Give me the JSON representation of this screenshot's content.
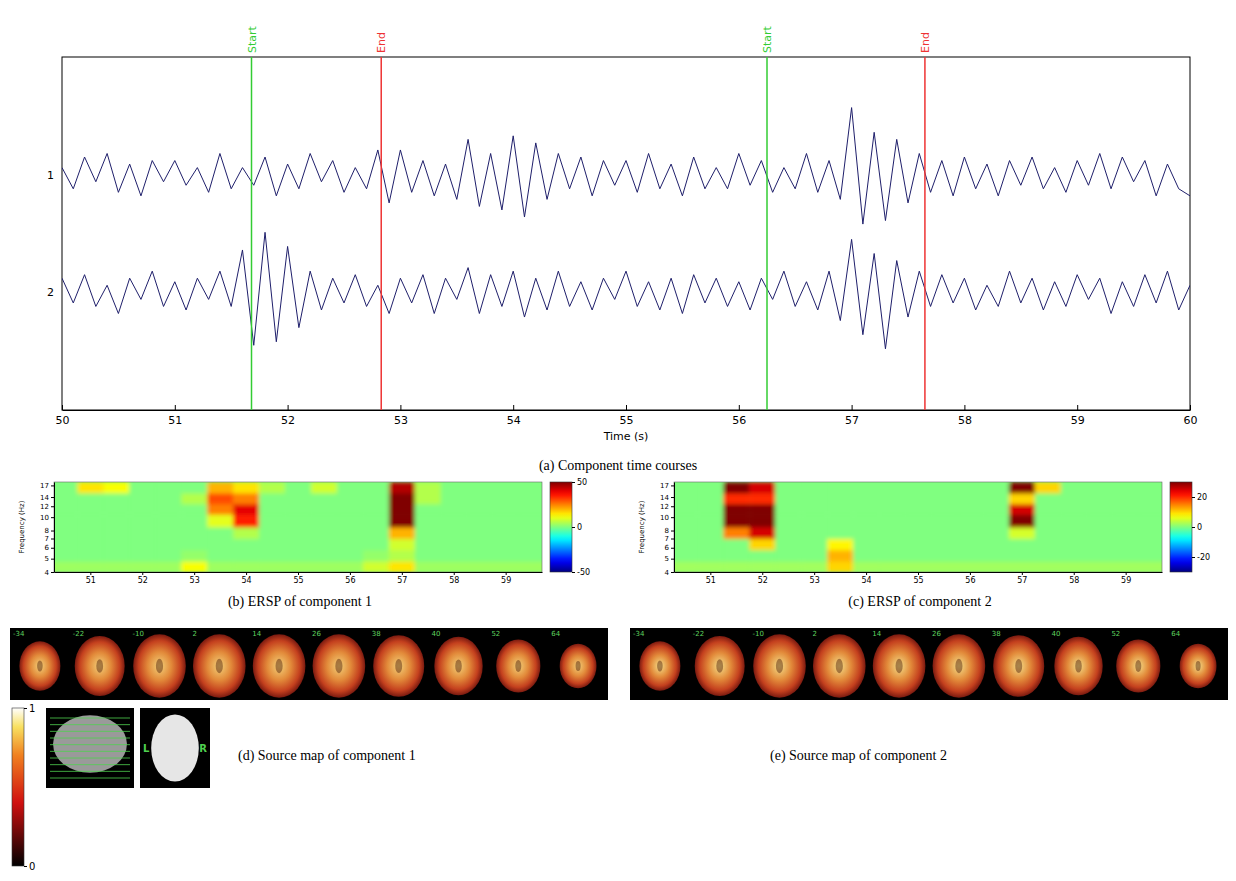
{
  "chart_data": [
    {
      "type": "line",
      "caption": "(a) Component time courses",
      "xlabel": "Time (s)",
      "xlim": [
        50,
        60
      ],
      "xticks": [
        50,
        51,
        52,
        53,
        54,
        55,
        56,
        57,
        58,
        59,
        60
      ],
      "ylim": [
        -1,
        1
      ],
      "x": [
        50,
        50.1,
        50.2,
        50.3,
        50.4,
        50.5,
        50.6,
        50.7,
        50.8,
        50.9,
        51,
        51.1,
        51.2,
        51.3,
        51.4,
        51.5,
        51.6,
        51.7,
        51.8,
        51.9,
        52,
        52.1,
        52.2,
        52.3,
        52.4,
        52.5,
        52.6,
        52.7,
        52.8,
        52.9,
        53,
        53.1,
        53.2,
        53.3,
        53.4,
        53.5,
        53.6,
        53.7,
        53.8,
        53.9,
        54,
        54.1,
        54.2,
        54.3,
        54.4,
        54.5,
        54.6,
        54.7,
        54.8,
        54.9,
        55,
        55.1,
        55.2,
        55.3,
        55.4,
        55.5,
        55.6,
        55.7,
        55.8,
        55.9,
        56,
        56.1,
        56.2,
        56.3,
        56.4,
        56.5,
        56.6,
        56.7,
        56.8,
        56.9,
        57,
        57.1,
        57.2,
        57.3,
        57.4,
        57.5,
        57.6,
        57.7,
        57.8,
        57.9,
        58,
        58.1,
        58.2,
        58.3,
        58.4,
        58.5,
        58.6,
        58.7,
        58.8,
        58.9,
        59,
        59.1,
        59.2,
        59.3,
        59.4,
        59.5,
        59.6,
        59.7,
        59.8,
        59.9,
        60
      ],
      "series": [
        {
          "name": "1",
          "color": "#1f1f6b",
          "values": [
            0.1,
            -0.2,
            0.25,
            -0.1,
            0.3,
            -0.25,
            0.15,
            -0.3,
            0.2,
            -0.1,
            0.2,
            -0.15,
            0.1,
            -0.25,
            0.3,
            -0.2,
            0.1,
            -0.15,
            0.25,
            -0.3,
            0.15,
            -0.2,
            0.3,
            -0.1,
            0.2,
            -0.25,
            0.1,
            -0.2,
            0.35,
            -0.4,
            0.35,
            -0.25,
            0.2,
            -0.3,
            0.15,
            -0.35,
            0.5,
            -0.45,
            0.3,
            -0.5,
            0.55,
            -0.6,
            0.45,
            -0.35,
            0.3,
            -0.2,
            0.25,
            -0.3,
            0.2,
            -0.15,
            0.2,
            -0.25,
            0.3,
            -0.2,
            0.15,
            -0.3,
            0.25,
            -0.2,
            0.1,
            -0.2,
            0.3,
            -0.15,
            0.2,
            -0.25,
            0.1,
            -0.2,
            0.3,
            -0.25,
            0.2,
            -0.35,
            0.95,
            -0.7,
            0.6,
            -0.65,
            0.5,
            -0.4,
            0.3,
            -0.25,
            0.2,
            -0.3,
            0.25,
            -0.2,
            0.15,
            -0.3,
            0.2,
            -0.15,
            0.25,
            -0.2,
            0.1,
            -0.25,
            0.2,
            -0.15,
            0.3,
            -0.2,
            0.25,
            -0.1,
            0.2,
            -0.3,
            0.15,
            -0.2,
            -0.3
          ]
        },
        {
          "name": "2",
          "color": "#1f1f6b",
          "values": [
            0.2,
            -0.15,
            0.25,
            -0.2,
            0.1,
            -0.3,
            0.2,
            -0.1,
            0.3,
            -0.2,
            0.15,
            -0.25,
            0.2,
            -0.1,
            0.3,
            -0.2,
            0.6,
            -0.75,
            0.85,
            -0.7,
            0.65,
            -0.5,
            0.3,
            -0.25,
            0.2,
            -0.15,
            0.25,
            -0.2,
            0.1,
            -0.3,
            0.2,
            -0.15,
            0.25,
            -0.3,
            0.2,
            -0.1,
            0.35,
            -0.3,
            0.25,
            -0.2,
            0.3,
            -0.35,
            0.2,
            -0.25,
            0.3,
            -0.2,
            0.15,
            -0.25,
            0.2,
            -0.1,
            0.3,
            -0.2,
            0.15,
            -0.25,
            0.2,
            -0.3,
            0.25,
            -0.15,
            0.2,
            -0.2,
            0.15,
            -0.25,
            0.2,
            -0.1,
            0.3,
            -0.2,
            0.15,
            -0.25,
            0.3,
            -0.4,
            0.75,
            -0.6,
            0.55,
            -0.8,
            0.45,
            -0.35,
            0.3,
            -0.2,
            0.25,
            -0.15,
            0.2,
            -0.25,
            0.1,
            -0.2,
            0.3,
            -0.15,
            0.2,
            -0.25,
            0.15,
            -0.2,
            0.25,
            -0.1,
            0.2,
            -0.3,
            0.15,
            -0.2,
            0.25,
            -0.15,
            0.3,
            -0.25,
            0.1
          ]
        }
      ],
      "annotations": [
        {
          "x": 51.68,
          "label": "Start",
          "color": "#33cc33"
        },
        {
          "x": 52.83,
          "label": "End",
          "color": "#ee3333"
        },
        {
          "x": 56.25,
          "label": "Start",
          "color": "#33cc33"
        },
        {
          "x": 57.65,
          "label": "End",
          "color": "#ee3333"
        }
      ]
    },
    {
      "type": "heatmap",
      "caption": "(b) ERSP of component 1",
      "ylabel": "Frequency (Hz)",
      "log": "y",
      "xlim": [
        50.3,
        59.7
      ],
      "xticks": [
        51,
        52,
        53,
        54,
        55,
        56,
        57,
        58,
        59
      ],
      "ylim": [
        4,
        18
      ],
      "yticks": [
        4,
        5,
        6,
        7,
        8,
        10,
        12,
        14,
        17
      ],
      "x_bins": [
        50.25,
        50.75,
        51.25,
        51.75,
        52.25,
        52.75,
        53.25,
        53.75,
        54.25,
        54.75,
        55.25,
        55.75,
        56.25,
        56.75,
        57.25,
        57.75,
        58.25,
        58.75,
        59.25,
        59.75
      ],
      "y_bins": [
        4,
        4.8,
        5.8,
        7,
        8.5,
        10.5,
        12.5,
        15,
        18
      ],
      "values": [
        [
          3,
          3,
          3,
          3,
          3,
          12,
          3,
          3,
          3,
          3,
          3,
          3,
          8,
          15,
          3,
          3,
          3,
          3,
          3
        ],
        [
          0,
          0,
          0,
          0,
          0,
          2,
          0,
          0,
          0,
          0,
          0,
          0,
          2,
          5,
          0,
          0,
          0,
          0,
          0
        ],
        [
          0,
          0,
          0,
          0,
          0,
          0,
          0,
          0,
          0,
          0,
          0,
          0,
          0,
          8,
          0,
          0,
          0,
          0,
          0
        ],
        [
          0,
          0,
          0,
          0,
          0,
          0,
          0,
          5,
          0,
          0,
          0,
          0,
          0,
          20,
          0,
          0,
          0,
          0,
          0
        ],
        [
          0,
          0,
          0,
          0,
          0,
          0,
          10,
          35,
          0,
          0,
          0,
          0,
          0,
          50,
          0,
          0,
          0,
          0,
          0
        ],
        [
          0,
          0,
          0,
          0,
          0,
          0,
          25,
          40,
          0,
          0,
          0,
          0,
          0,
          50,
          0,
          0,
          0,
          0,
          0
        ],
        [
          0,
          0,
          0,
          0,
          0,
          5,
          30,
          25,
          0,
          0,
          0,
          0,
          0,
          50,
          5,
          0,
          0,
          0,
          0
        ],
        [
          0,
          15,
          12,
          0,
          0,
          0,
          20,
          15,
          5,
          0,
          8,
          0,
          0,
          45,
          5,
          0,
          0,
          0,
          0
        ]
      ],
      "colorbar": {
        "range": [
          -50,
          50
        ],
        "ticks": [
          -50,
          0,
          50
        ]
      }
    },
    {
      "type": "heatmap",
      "caption": "(c) ERSP of component 2",
      "ylabel": "Frequency (Hz)",
      "log": "y",
      "xlim": [
        50.3,
        59.7
      ],
      "xticks": [
        51,
        52,
        53,
        54,
        55,
        56,
        57,
        58,
        59
      ],
      "ylim": [
        4,
        18
      ],
      "yticks": [
        4,
        5,
        6,
        7,
        8,
        10,
        12,
        14,
        17
      ],
      "x_bins": [
        50.25,
        50.75,
        51.25,
        51.75,
        52.25,
        52.75,
        53.25,
        53.75,
        54.25,
        54.75,
        55.25,
        55.75,
        56.25,
        56.75,
        57.25,
        57.75,
        58.25,
        58.75,
        59.25,
        59.75
      ],
      "y_bins": [
        4,
        4.8,
        5.8,
        7,
        8.5,
        10.5,
        12.5,
        15,
        18
      ],
      "values": [
        [
          2,
          2,
          2,
          2,
          2,
          2,
          10,
          2,
          2,
          2,
          2,
          2,
          2,
          2,
          2,
          2,
          2,
          2,
          2
        ],
        [
          0,
          0,
          0,
          0,
          0,
          0,
          12,
          0,
          0,
          0,
          0,
          0,
          0,
          0,
          0,
          0,
          0,
          0,
          0
        ],
        [
          0,
          0,
          0,
          10,
          0,
          0,
          8,
          0,
          0,
          0,
          0,
          0,
          0,
          0,
          0,
          0,
          0,
          0,
          0
        ],
        [
          0,
          0,
          15,
          25,
          0,
          0,
          0,
          0,
          0,
          0,
          0,
          0,
          0,
          5,
          0,
          0,
          0,
          0,
          0
        ],
        [
          0,
          0,
          30,
          30,
          0,
          0,
          0,
          0,
          0,
          0,
          0,
          0,
          0,
          30,
          0,
          0,
          0,
          0,
          0
        ],
        [
          0,
          0,
          30,
          30,
          0,
          0,
          0,
          0,
          0,
          0,
          0,
          0,
          0,
          25,
          0,
          0,
          0,
          0,
          0
        ],
        [
          0,
          0,
          20,
          20,
          0,
          0,
          0,
          0,
          0,
          0,
          0,
          0,
          0,
          10,
          0,
          0,
          0,
          0,
          0
        ],
        [
          0,
          0,
          30,
          25,
          0,
          0,
          0,
          0,
          0,
          0,
          0,
          0,
          0,
          30,
          10,
          0,
          0,
          0,
          0
        ]
      ],
      "colorbar": {
        "range": [
          -30,
          30
        ],
        "ticks": [
          -20,
          0,
          20
        ]
      }
    },
    {
      "type": "image",
      "caption": "(d) Source map of component 1",
      "slice_labels": [
        -34,
        -22,
        -10,
        2,
        14,
        26,
        38,
        40,
        52,
        64
      ],
      "colorbar": {
        "range": [
          0,
          1
        ],
        "ticks": [
          0,
          1
        ]
      },
      "side_labels": [
        "L",
        "R"
      ]
    },
    {
      "type": "image",
      "caption": "(e) Source map of component 2",
      "slice_labels": [
        -34,
        -22,
        -10,
        2,
        14,
        26,
        38,
        40,
        52,
        64
      ]
    }
  ]
}
